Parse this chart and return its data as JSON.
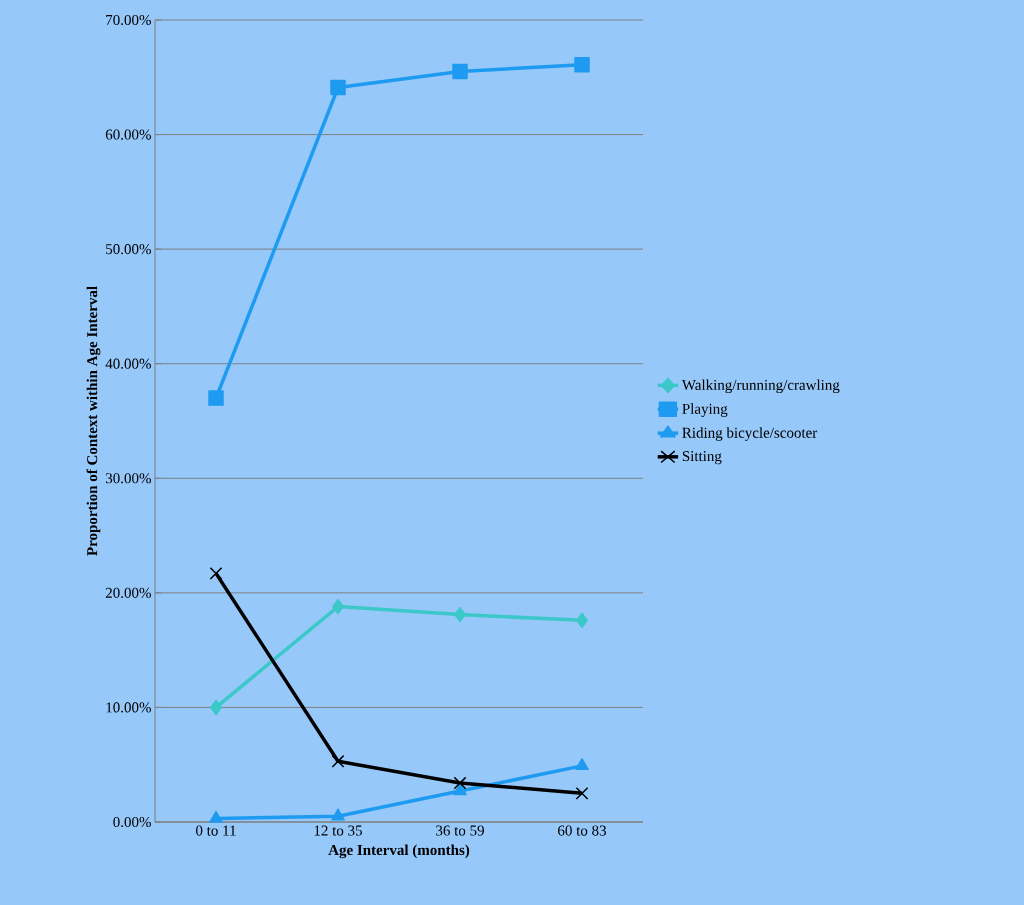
{
  "chart_data": {
    "type": "line",
    "xlabel": "Age Interval (months)",
    "ylabel": "Proportion of Context within Age Interval",
    "categories": [
      "0 to 11",
      "12 to 35",
      "36 to 59",
      "60 to 83"
    ],
    "series": [
      {
        "name": "Walking/running/crawling",
        "color": "#3cc8c8",
        "marker": "diamond",
        "values": [
          10.0,
          18.8,
          18.1,
          17.6
        ]
      },
      {
        "name": "Playing",
        "color": "#1e9bf0",
        "marker": "square",
        "values": [
          37.0,
          64.1,
          65.5,
          66.1
        ]
      },
      {
        "name": "Riding bicycle/scooter",
        "color": "#1e9bf0",
        "marker": "triangle",
        "values": [
          0.3,
          0.5,
          2.7,
          4.9
        ]
      },
      {
        "name": "Sitting",
        "color": "#000000",
        "marker": "cross",
        "values": [
          21.7,
          5.3,
          3.4,
          2.5
        ]
      }
    ],
    "ylim": [
      0,
      70
    ],
    "yticks": [
      {
        "value": 0,
        "label": "0.00%"
      },
      {
        "value": 10,
        "label": "10.00%"
      },
      {
        "value": 20,
        "label": "20.00%"
      },
      {
        "value": 30,
        "label": "30.00%"
      },
      {
        "value": 40,
        "label": "40.00%"
      },
      {
        "value": 50,
        "label": "50.00%"
      },
      {
        "value": 60,
        "label": "60.00%"
      },
      {
        "value": 70,
        "label": "70.00%"
      }
    ],
    "grid": "y",
    "legend": "right",
    "line_style": "solid"
  }
}
